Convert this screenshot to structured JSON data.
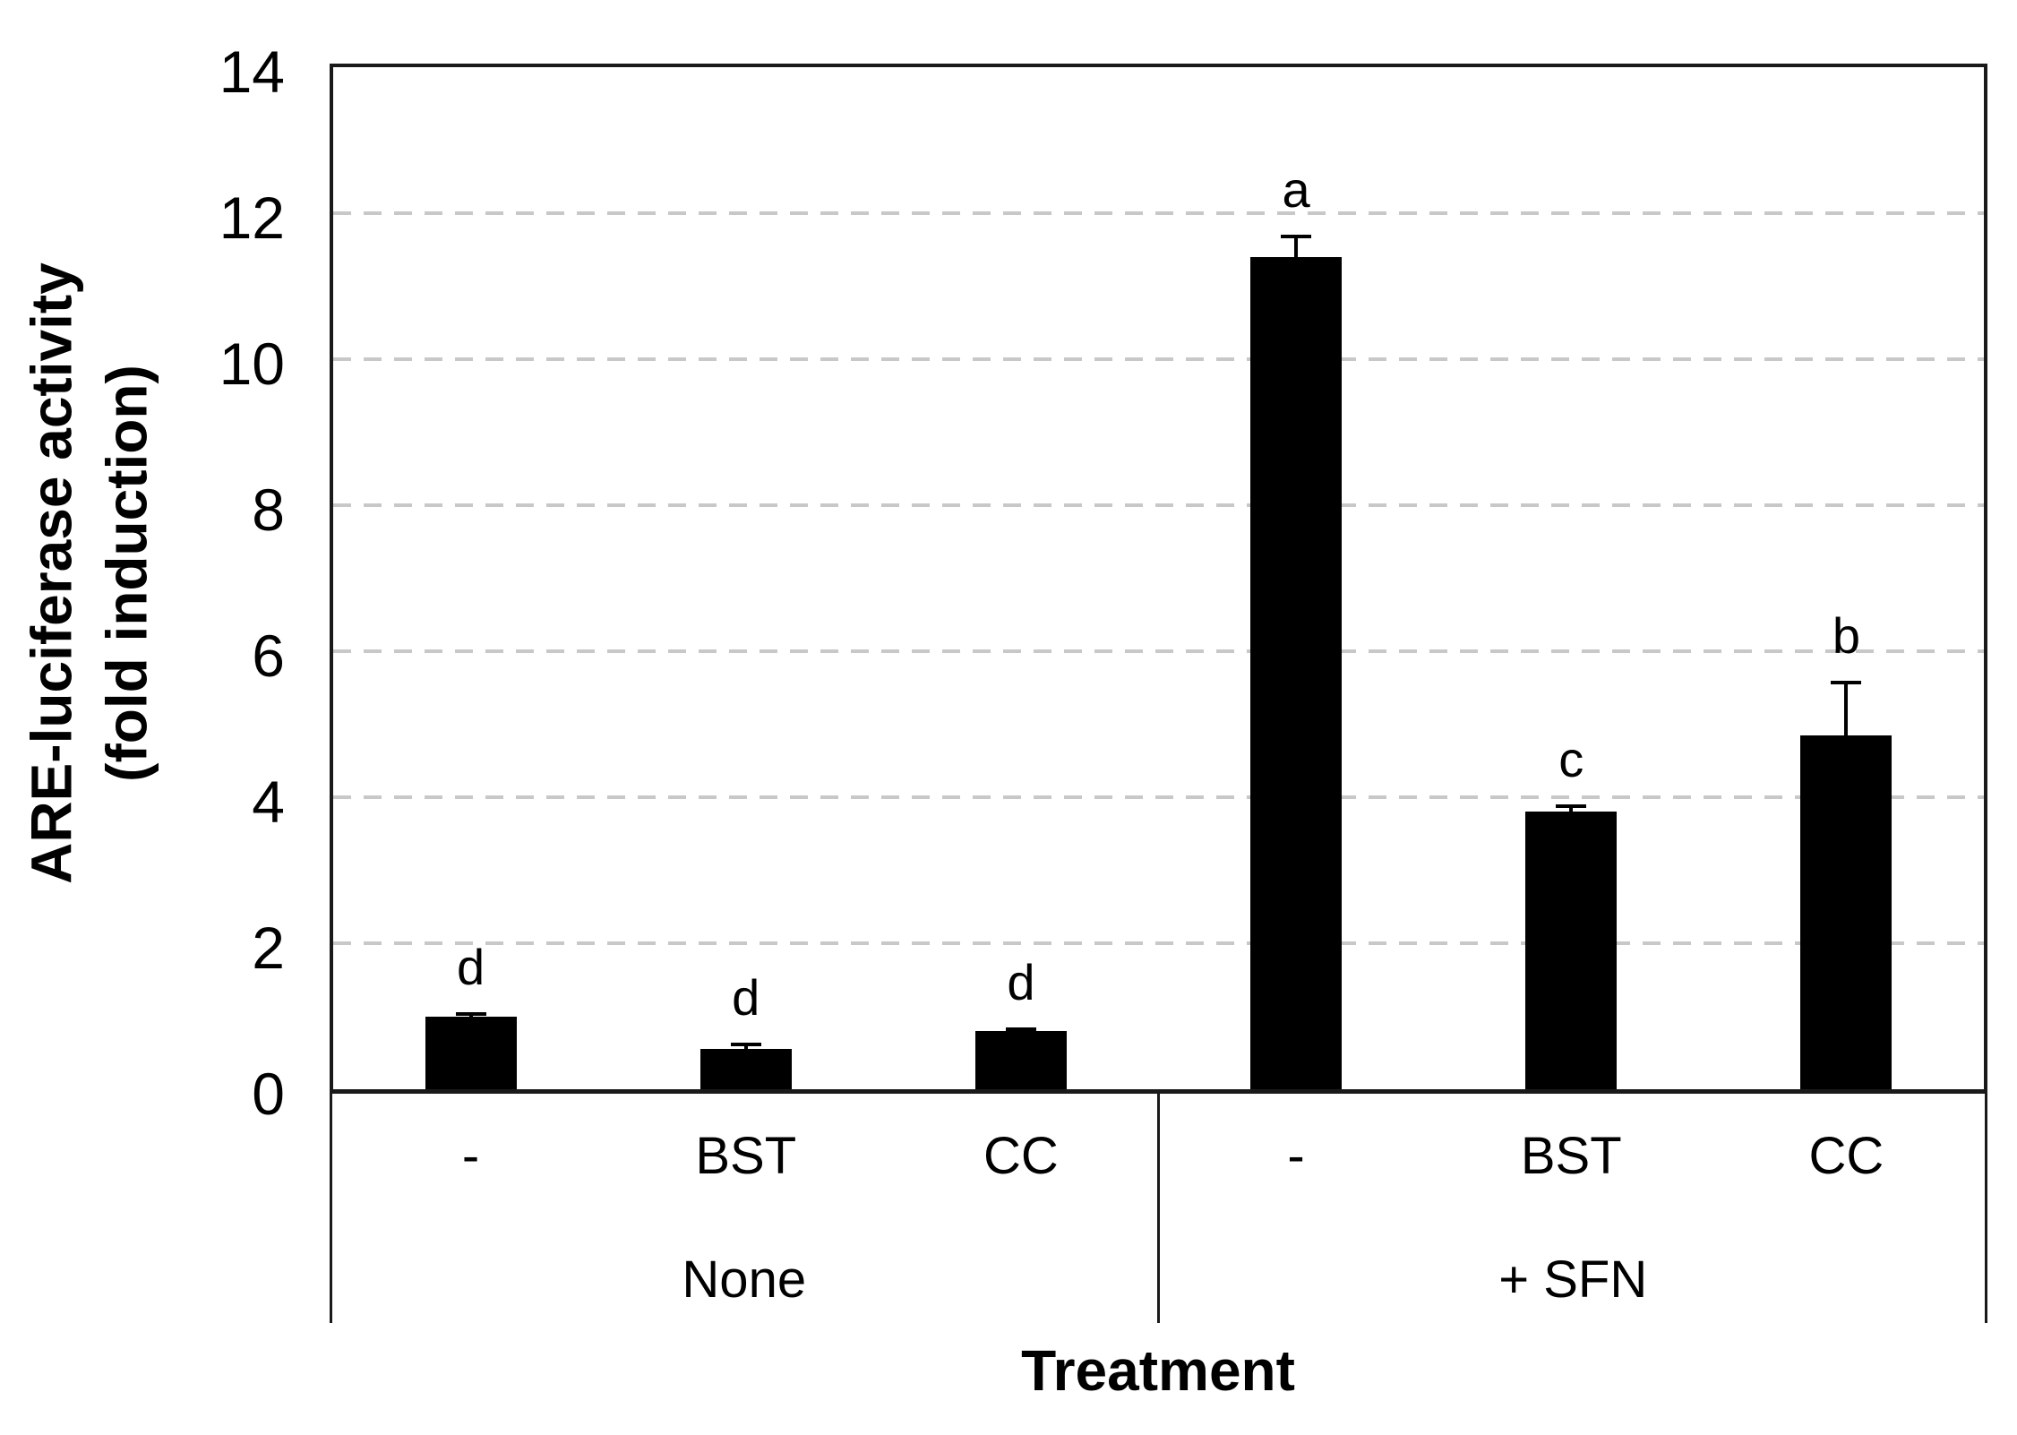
{
  "chart_data": {
    "type": "bar",
    "title": "",
    "ylabel_line1": "ARE-luciferase activity",
    "ylabel_line2": "(fold induction)",
    "xlabel": "Treatment",
    "ylim": [
      0,
      14
    ],
    "yticks": [
      0,
      2,
      4,
      6,
      8,
      10,
      12,
      14
    ],
    "grid": "horizontal dashed gridlines every 2 units",
    "legend": "none",
    "bar_color": "#000000",
    "grid_color": "#c8c8c8",
    "axis_color": "#1a1a1a",
    "groups": [
      {
        "label": "None",
        "bars": [
          {
            "label": "-",
            "value": 1.0,
            "error": 0.06,
            "letter": "d"
          },
          {
            "label": "BST",
            "value": 0.55,
            "error": 0.09,
            "letter": "d"
          },
          {
            "label": "CC",
            "value": 0.8,
            "error": 0.05,
            "letter": "d"
          }
        ]
      },
      {
        "label": "+ SFN",
        "bars": [
          {
            "label": "-",
            "value": 11.4,
            "error": 0.3,
            "letter": "a"
          },
          {
            "label": "BST",
            "value": 3.8,
            "error": 0.1,
            "letter": "c"
          },
          {
            "label": "CC",
            "value": 4.85,
            "error": 0.75,
            "letter": "b"
          }
        ]
      }
    ]
  }
}
